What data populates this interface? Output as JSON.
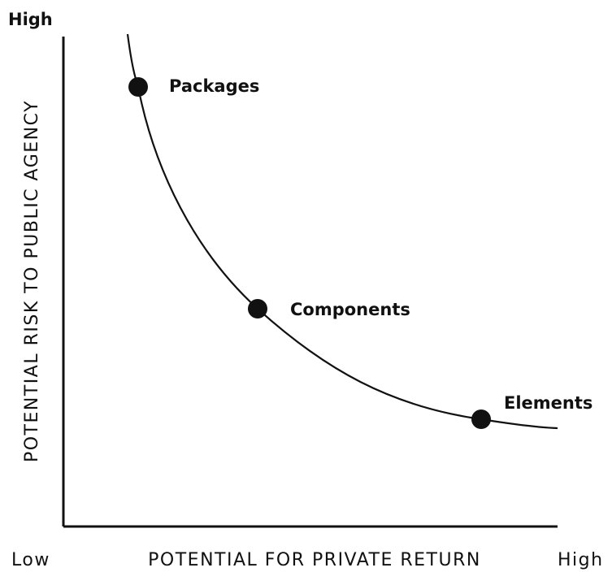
{
  "y_axis": {
    "high": "High",
    "label": "POTENTIAL RISK TO PUBLIC AGENCY"
  },
  "x_axis": {
    "low": "Low",
    "label": "POTENTIAL FOR PRIVATE RETURN",
    "high": "High"
  },
  "points": [
    {
      "label": "Packages"
    },
    {
      "label": "Components"
    },
    {
      "label": "Elements"
    }
  ]
}
